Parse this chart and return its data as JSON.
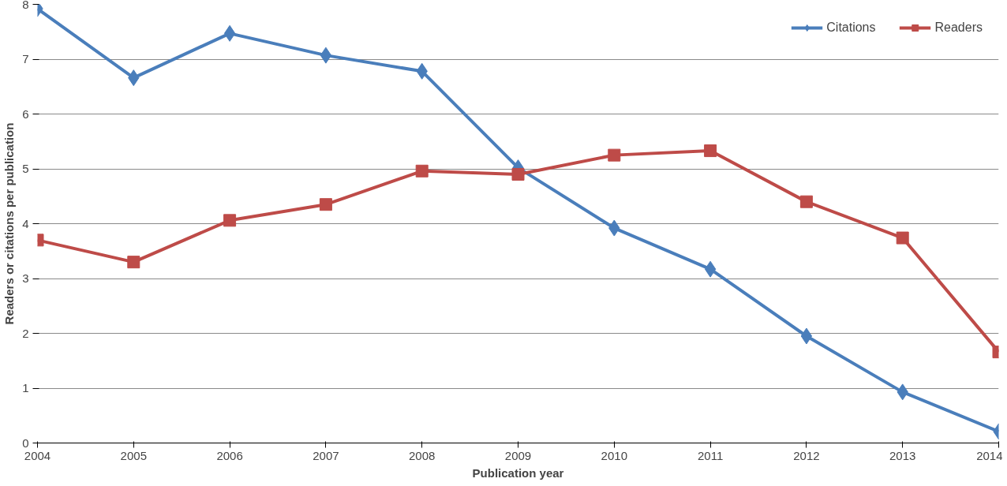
{
  "chart_data": {
    "type": "line",
    "xlabel": "Publication year",
    "ylabel": "Readers or citations per publication",
    "x": [
      2004,
      2005,
      2006,
      2007,
      2008,
      2009,
      2010,
      2011,
      2012,
      2013,
      2014
    ],
    "xlim": [
      2004,
      2014
    ],
    "xticks": [
      2004,
      2005,
      2006,
      2007,
      2008,
      2009,
      2010,
      2011,
      2012,
      2013,
      2014
    ],
    "ylim": [
      0,
      8
    ],
    "yticks": [
      0,
      1,
      2,
      3,
      4,
      5,
      6,
      7,
      8
    ],
    "grid": "y",
    "legend": "top right",
    "line_style": "solid",
    "series": [
      {
        "name": "Citations",
        "color": "#4a7ebb",
        "marker": "diamond",
        "values": [
          7.92,
          6.66,
          7.47,
          7.07,
          6.78,
          5.02,
          3.92,
          3.17,
          1.95,
          0.93,
          0.21
        ]
      },
      {
        "name": "Readers",
        "color": "#be4b48",
        "marker": "square",
        "values": [
          3.7,
          3.3,
          4.06,
          4.35,
          4.96,
          4.9,
          5.25,
          5.33,
          4.4,
          3.74,
          1.66
        ]
      }
    ]
  }
}
